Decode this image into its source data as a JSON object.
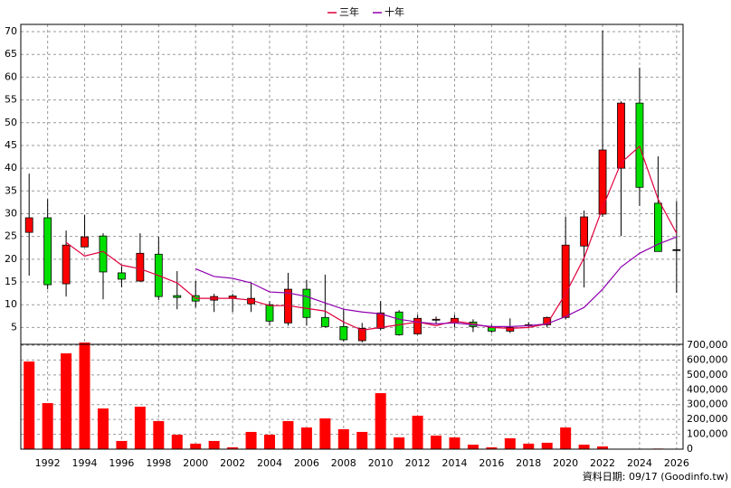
{
  "chart_data": [
    {
      "type": "candlestick",
      "x": [
        1991,
        1992,
        1993,
        1994,
        1995,
        1996,
        1997,
        1998,
        1999,
        2000,
        2001,
        2002,
        2003,
        2004,
        2005,
        2006,
        2007,
        2008,
        2009,
        2010,
        2011,
        2012,
        2013,
        2014,
        2015,
        2016,
        2017,
        2018,
        2019,
        2020,
        2021,
        2022,
        2023,
        2024,
        2025,
        2026
      ],
      "open": [
        25.9,
        29.1,
        14.6,
        22.7,
        25.1,
        17.0,
        15.2,
        21.1,
        12.0,
        12.0,
        11.0,
        11.4,
        10.2,
        10.0,
        6.0,
        13.4,
        7.2,
        5.2,
        2.1,
        4.8,
        8.4,
        3.6,
        6.6,
        6.0,
        6.2,
        5.0,
        4.2,
        5.4,
        5.6,
        7.2,
        22.9,
        29.9,
        40.0,
        54.3,
        32.3,
        22.1
      ],
      "high": [
        38.8,
        33.2,
        26.3,
        29.7,
        25.7,
        18.5,
        25.7,
        24.9,
        17.4,
        15.2,
        12.4,
        12.4,
        14.8,
        10.8,
        17.0,
        15.4,
        16.6,
        9.0,
        6.0,
        10.8,
        8.8,
        7.8,
        7.4,
        7.8,
        6.8,
        5.6,
        7.0,
        6.2,
        7.4,
        29.3,
        30.7,
        70.2,
        54.7,
        62.1,
        42.6,
        32.8
      ],
      "low": [
        16.4,
        13.4,
        11.8,
        22.7,
        11.2,
        13.8,
        15.0,
        11.0,
        9.0,
        9.4,
        8.4,
        8.4,
        8.4,
        5.4,
        5.4,
        5.4,
        5.0,
        1.9,
        1.7,
        4.4,
        3.2,
        3.4,
        5.8,
        5.0,
        4.0,
        3.8,
        3.8,
        5.0,
        5.0,
        6.8,
        13.8,
        29.3,
        25.1,
        31.7,
        21.7,
        12.6
      ],
      "close": [
        29.1,
        14.4,
        23.1,
        24.9,
        17.2,
        15.6,
        21.3,
        11.8,
        11.6,
        10.8,
        11.8,
        11.9,
        11.4,
        6.4,
        13.4,
        7.2,
        5.2,
        2.3,
        4.8,
        8.2,
        3.4,
        7.0,
        6.8,
        7.0,
        5.2,
        4.2,
        5.0,
        5.6,
        7.2,
        23.1,
        29.3,
        44.0,
        54.3,
        35.8,
        21.7,
        22.1
      ],
      "up_color": "#ff0000",
      "down_color": "#00e000",
      "series": [
        {
          "name": "三年",
          "color": "#e0003c",
          "values": [
            null,
            null,
            23.7,
            20.7,
            21.7,
            18.7,
            17.9,
            16.4,
            14.8,
            11.4,
            11.4,
            11.4,
            11.0,
            9.8,
            9.8,
            9.2,
            8.6,
            6.2,
            4.4,
            5.0,
            5.6,
            6.2,
            5.4,
            6.4,
            5.8,
            5.0,
            4.8,
            5.0,
            5.8,
            12.4,
            20.3,
            31.3,
            41.2,
            44.8,
            33.2,
            25.7
          ]
        },
        {
          "name": "十年",
          "color": "#9000b0",
          "values": [
            null,
            null,
            null,
            null,
            null,
            null,
            null,
            null,
            null,
            17.9,
            16.2,
            15.8,
            14.8,
            12.8,
            12.6,
            11.8,
            10.4,
            9.0,
            8.4,
            8.0,
            6.8,
            6.2,
            5.8,
            6.0,
            5.6,
            5.2,
            5.2,
            5.4,
            5.8,
            7.4,
            9.4,
            13.4,
            18.3,
            21.3,
            23.3,
            24.9
          ]
        }
      ],
      "legend": "top",
      "xlim": [
        1990.55,
        2026.35
      ],
      "xticks": [
        1992,
        1994,
        1996,
        1998,
        2000,
        2002,
        2004,
        2006,
        2008,
        2010,
        2012,
        2014,
        2016,
        2018,
        2020,
        2022,
        2024,
        2026
      ],
      "ylim": [
        1.3,
        71.6
      ],
      "yticks": [
        5,
        10,
        15,
        20,
        25,
        30,
        35,
        40,
        45,
        50,
        55,
        60,
        65,
        70
      ],
      "grid": true
    },
    {
      "type": "bar",
      "x": [
        1991,
        1992,
        1993,
        1994,
        1995,
        1996,
        1997,
        1998,
        1999,
        2000,
        2001,
        2002,
        2003,
        2004,
        2005,
        2006,
        2007,
        2008,
        2009,
        2010,
        2011,
        2012,
        2013,
        2014,
        2015,
        2016,
        2017,
        2018,
        2019,
        2020,
        2021,
        2022,
        2023,
        2024,
        2025,
        2026
      ],
      "values": [
        590000,
        310000,
        645000,
        718000,
        274000,
        55000,
        286000,
        189000,
        97000,
        37000,
        55000,
        12000,
        116000,
        97000,
        189000,
        146000,
        207000,
        134000,
        116000,
        377000,
        79000,
        225000,
        91000,
        79000,
        30000,
        12000,
        73000,
        37000,
        43000,
        146000,
        30000,
        18000,
        2000,
        1000,
        4000,
        1000
      ],
      "color": "#ff0000",
      "xlim": [
        1990.55,
        2026.35
      ],
      "xticks": [
        1992,
        1994,
        1996,
        1998,
        2000,
        2002,
        2004,
        2006,
        2008,
        2010,
        2012,
        2014,
        2016,
        2018,
        2020,
        2022,
        2024,
        2026
      ],
      "ylim": [
        0,
        706000
      ],
      "yticks": [
        0,
        {
          "value": 100000,
          "label": "100,000"
        },
        {
          "value": 200000,
          "label": "200,000"
        },
        {
          "value": 300000,
          "label": "300,000"
        },
        {
          "value": 400000,
          "label": "400,000"
        },
        {
          "value": 500000,
          "label": "500,000"
        },
        {
          "value": 600000,
          "label": "600,000"
        },
        {
          "value": 700000,
          "label": "700,000"
        }
      ],
      "grid": true
    }
  ],
  "footnote": "資料日期: 09/17  (Goodinfo.tw)"
}
